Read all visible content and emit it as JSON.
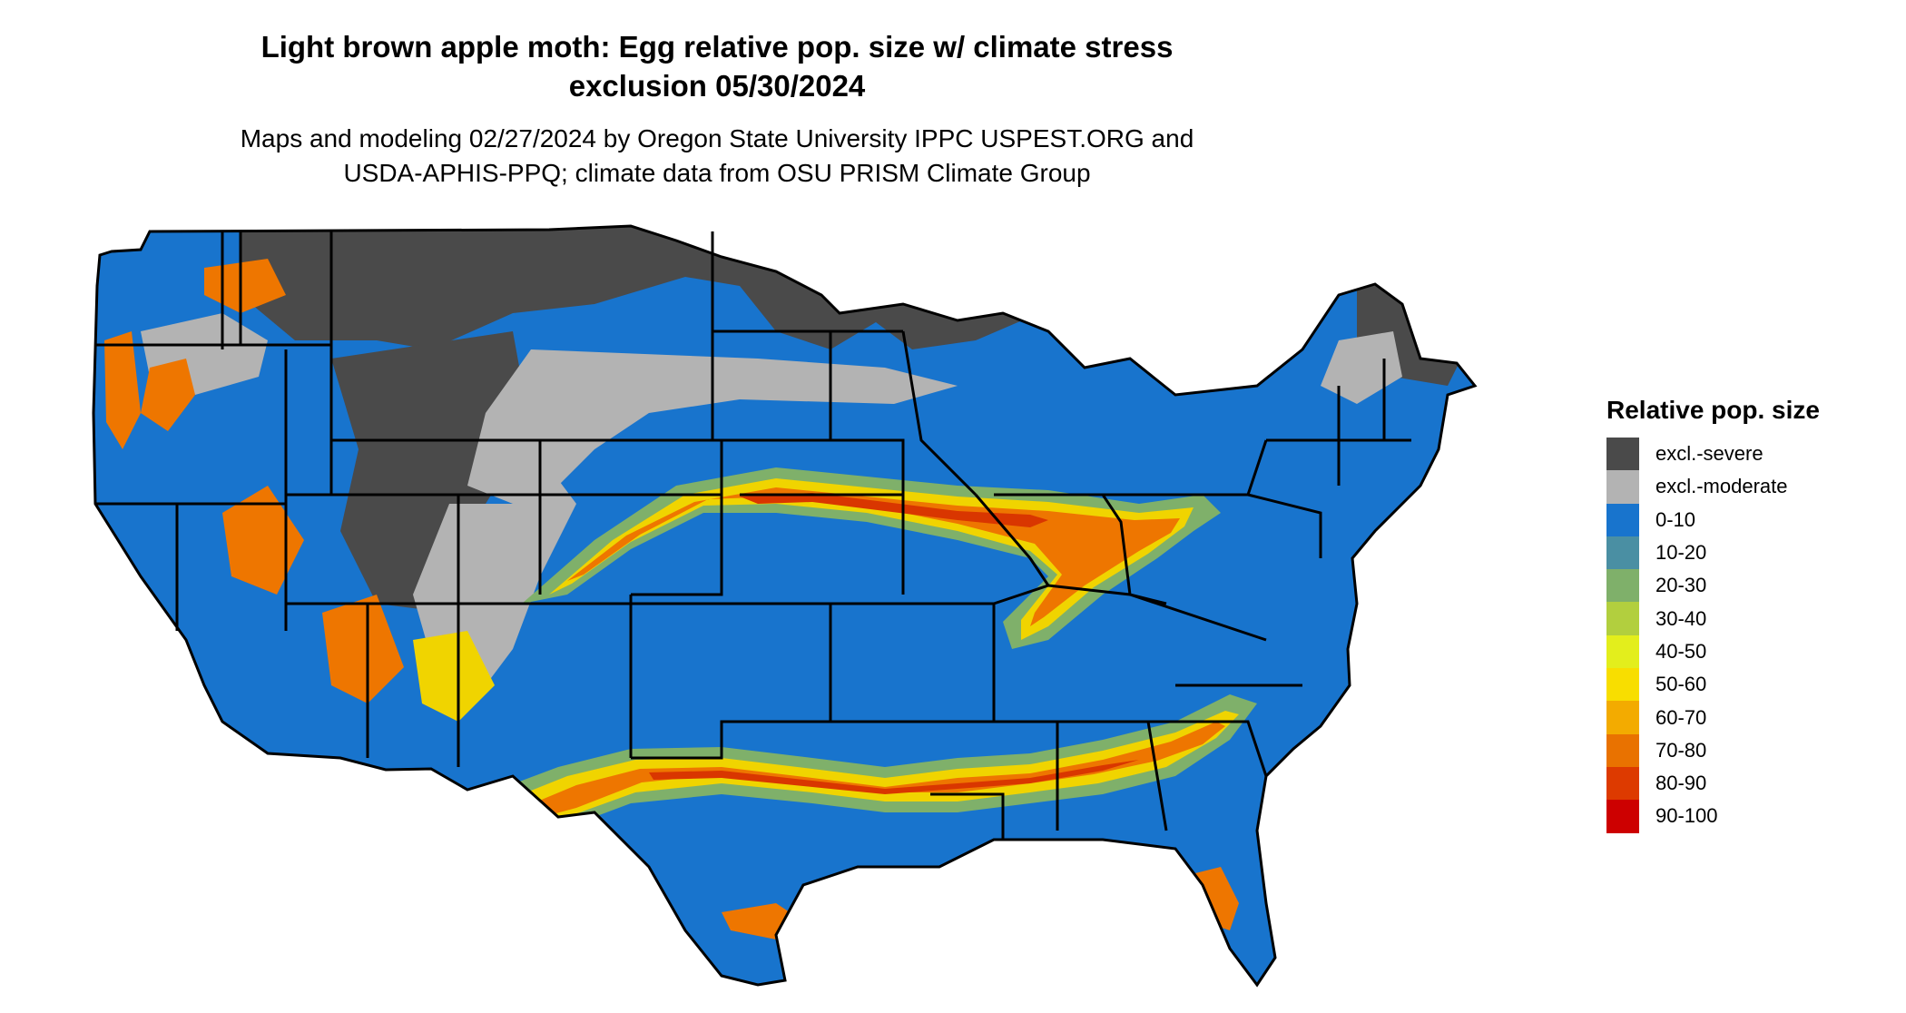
{
  "header": {
    "title_line1": "Light brown apple moth: Egg relative pop. size w/ climate stress",
    "title_line2": "exclusion 05/30/2024",
    "subtitle_line1": "Maps and modeling 02/27/2024 by Oregon State University IPPC USPEST.ORG and",
    "subtitle_line2": "USDA-APHIS-PPQ; climate data from OSU PRISM Climate Group"
  },
  "map": {
    "region": "Contiguous United States",
    "colors": {
      "severe": "#4a4a4a",
      "moderate": "#b3b3b3",
      "low": "#1874cd",
      "band_outer": "#7fb06a",
      "band_mid": "#f0d400",
      "band_inner": "#ee7600",
      "band_core": "#d93600",
      "border": "#000000"
    }
  },
  "legend": {
    "title": "Relative pop. size",
    "items": [
      {
        "label": "excl.-severe",
        "color": "#4a4a4a"
      },
      {
        "label": "excl.-moderate",
        "color": "#b3b3b3"
      },
      {
        "label": "0-10",
        "color": "#1874cd"
      },
      {
        "label": "10-20",
        "color": "#4a8fa3"
      },
      {
        "label": "20-30",
        "color": "#7fb06a"
      },
      {
        "label": "30-40",
        "color": "#b2cf3e"
      },
      {
        "label": "40-50",
        "color": "#e3ee1c"
      },
      {
        "label": "50-60",
        "color": "#f8de00"
      },
      {
        "label": "60-70",
        "color": "#f3ab00"
      },
      {
        "label": "70-80",
        "color": "#e97200"
      },
      {
        "label": "80-90",
        "color": "#dd3a00"
      },
      {
        "label": "90-100",
        "color": "#cd0000"
      }
    ]
  }
}
